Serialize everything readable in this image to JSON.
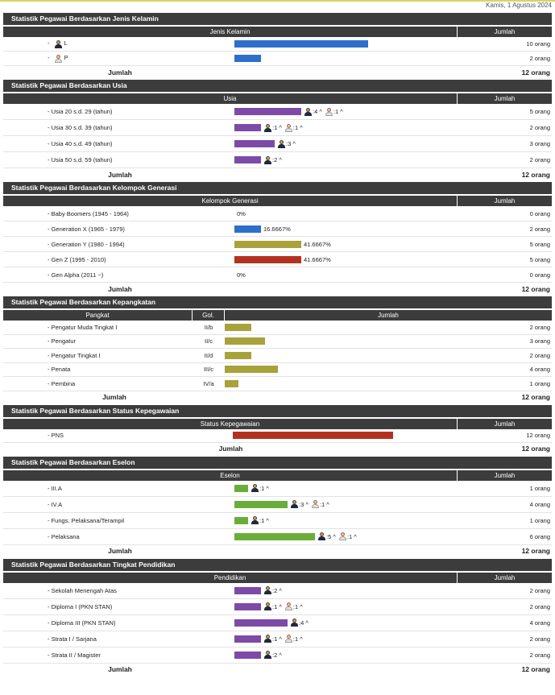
{
  "date": "Kamis, 1 Agustus 2024",
  "unit": "orang",
  "total_label": "Jumlah",
  "sections": {
    "gender": {
      "title": "Statistik Pegawai Berdasarkan Jenis Kelamin",
      "col1": "Jenis Kelamin",
      "col2": "Jumlah",
      "rows": [
        {
          "label": "L",
          "count": "10 orang",
          "value": 10
        },
        {
          "label": "P",
          "count": "2 orang",
          "value": 2
        }
      ],
      "total": "12 orang"
    },
    "age": {
      "title": "Statistik Pegawai Berdasarkan Usia",
      "col1": "Usia",
      "col2": "Jumlah",
      "rows": [
        {
          "label": "Usia 20 s.d. 29 (tahun)",
          "m": ":4 ^",
          "f": ":1 ^",
          "count": "5 orang",
          "value": 5
        },
        {
          "label": "Usia 30 s.d. 39 (tahun)",
          "m": ":1 ^",
          "f": ":1 ^",
          "count": "2 orang",
          "value": 2
        },
        {
          "label": "Usia 40 s.d. 49 (tahun)",
          "m": ":3 ^",
          "f": "",
          "count": "3 orang",
          "value": 3
        },
        {
          "label": "Usia 50 s.d. 59 (tahun)",
          "m": ":2 ^",
          "f": "",
          "count": "2 orang",
          "value": 2
        }
      ],
      "total": "12 orang"
    },
    "gen": {
      "title": "Statistik Pegawai Berdasarkan Kelompok Generasi",
      "col1": "Kelompok Generasi",
      "col2": "Jumlah",
      "rows": [
        {
          "label": "Baby Boomers (1945 - 1964)",
          "pct": "0%",
          "count": "0 orang",
          "value": 0,
          "color": "#2e6fc9"
        },
        {
          "label": "Generation X (1965 - 1979)",
          "pct": "16.6667%",
          "count": "2 orang",
          "value": 2,
          "color": "#2e6fc9"
        },
        {
          "label": "Generation Y (1980 - 1994)",
          "pct": "41.6667%",
          "count": "5 orang",
          "value": 5,
          "color": "#a8a23a"
        },
        {
          "label": "Gen Z (1995 - 2010)",
          "pct": "41.6667%",
          "count": "5 orang",
          "value": 5,
          "color": "#b3321f"
        },
        {
          "label": "Gen Alpha (2011 ~)",
          "pct": "0%",
          "count": "0 orang",
          "value": 0,
          "color": "#2e6fc9"
        }
      ],
      "total": "12 orang"
    },
    "rank": {
      "title": "Statistik Pegawai Berdasarkan Kepangkatan",
      "col1": "Pangkat",
      "col2": "Gol.",
      "col3": "Jumlah",
      "rows": [
        {
          "label": "Pengatur Muda Tingkat I",
          "gol": "II/b",
          "count": "2 orang",
          "value": 2
        },
        {
          "label": "Pengatur",
          "gol": "II/c",
          "count": "3 orang",
          "value": 3
        },
        {
          "label": "Pengatur Tingkat I",
          "gol": "II/d",
          "count": "2 orang",
          "value": 2
        },
        {
          "label": "Penata",
          "gol": "III/c",
          "count": "4 orang",
          "value": 4
        },
        {
          "label": "Pembina",
          "gol": "IV/a",
          "count": "1 orang",
          "value": 1
        }
      ],
      "total": "12 orang"
    },
    "status": {
      "title": "Statistik Pegawai Berdasarkan Status Kepegawaian",
      "col1": "Status Kepegawaian",
      "col2": "Jumlah",
      "rows": [
        {
          "label": "PNS",
          "count": "12 orang",
          "value": 12
        }
      ],
      "total": "12 orang"
    },
    "eselon": {
      "title": "Statistik Pegawai Berdasarkan Eselon",
      "col1": "Eselon",
      "col2": "Jumlah",
      "rows": [
        {
          "label": "III.A",
          "m": ":1 ^",
          "f": "",
          "count": "1 orang",
          "value": 1
        },
        {
          "label": "IV.A",
          "m": ":3 ^",
          "f": ":1 ^",
          "count": "4 orang",
          "value": 4
        },
        {
          "label": "Fungs. Pelaksana/Terampil",
          "m": ":1 ^",
          "f": "",
          "count": "1 orang",
          "value": 1
        },
        {
          "label": "Pelaksana",
          "m": ":5 ^",
          "f": ":1 ^",
          "count": "6 orang",
          "value": 6
        }
      ],
      "total": "12 orang"
    },
    "edu": {
      "title": "Statistik Pegawai Berdasarkan Tingkat Pendidikan",
      "col1": "Pendidikan",
      "col2": "Jumlah",
      "rows": [
        {
          "label": "Sekolah Menengah Atas",
          "m": ":2 ^",
          "f": "",
          "count": "2 orang",
          "value": 2
        },
        {
          "label": "Diploma I (PKN STAN)",
          "m": ":1 ^",
          "f": ":1 ^",
          "count": "2 orang",
          "value": 2
        },
        {
          "label": "Diploma III (PKN STAN)",
          "m": ":4 ^",
          "f": "",
          "count": "4 orang",
          "value": 4
        },
        {
          "label": "Strata I / Sarjana",
          "m": ":1 ^",
          "f": ":1 ^",
          "count": "2 orang",
          "value": 2
        },
        {
          "label": "Strata II / Magister",
          "m": ":2 ^",
          "f": "",
          "count": "2 orang",
          "value": 2
        }
      ],
      "total": "12 orang"
    }
  },
  "colors": {
    "gender_bar": "#2e6fc9",
    "age_bar": "#7d4aa8",
    "rank_bar": "#a8a23a",
    "status_bar": "#b3321f",
    "eselon_bar": "#6aae3a",
    "edu_bar": "#7d4aa8"
  }
}
